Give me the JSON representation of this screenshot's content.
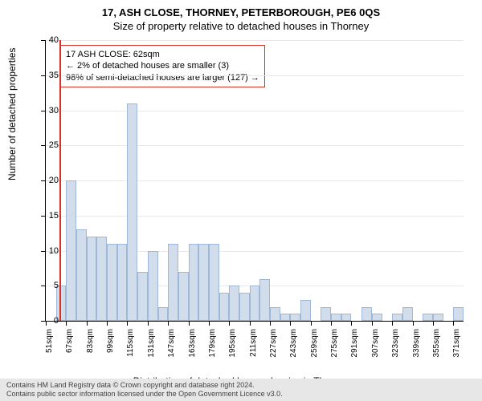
{
  "title": "17, ASH CLOSE, THORNEY, PETERBOROUGH, PE6 0QS",
  "subtitle": "Size of property relative to detached houses in Thorney",
  "ylabel": "Number of detached properties",
  "xlabel": "Distribution of detached houses by size in Thorney",
  "chart": {
    "type": "histogram",
    "background_color": "#ffffff",
    "grid_color": "#e8e8e8",
    "bar_fill": "#d2ddec",
    "bar_border": "#9fb8d9",
    "marker_color": "#d93025",
    "ylim": [
      0,
      40
    ],
    "ytick_step": 5,
    "xlim_labels_start": 51,
    "xlim_labels_step": 16,
    "xlim_bins": 41,
    "x_suffix": "sqm",
    "marker_x_value": 62,
    "bars": [
      {
        "bin": 1,
        "value": 5
      },
      {
        "bin": 2,
        "value": 20
      },
      {
        "bin": 3,
        "value": 13
      },
      {
        "bin": 4,
        "value": 12
      },
      {
        "bin": 5,
        "value": 12
      },
      {
        "bin": 6,
        "value": 11
      },
      {
        "bin": 7,
        "value": 11
      },
      {
        "bin": 8,
        "value": 31
      },
      {
        "bin": 9,
        "value": 7
      },
      {
        "bin": 10,
        "value": 10
      },
      {
        "bin": 11,
        "value": 2
      },
      {
        "bin": 12,
        "value": 11
      },
      {
        "bin": 13,
        "value": 7
      },
      {
        "bin": 14,
        "value": 11
      },
      {
        "bin": 15,
        "value": 11
      },
      {
        "bin": 16,
        "value": 11
      },
      {
        "bin": 17,
        "value": 4
      },
      {
        "bin": 18,
        "value": 5
      },
      {
        "bin": 19,
        "value": 4
      },
      {
        "bin": 20,
        "value": 5
      },
      {
        "bin": 21,
        "value": 6
      },
      {
        "bin": 22,
        "value": 2
      },
      {
        "bin": 23,
        "value": 1
      },
      {
        "bin": 24,
        "value": 1
      },
      {
        "bin": 25,
        "value": 3
      },
      {
        "bin": 26,
        "value": 0
      },
      {
        "bin": 27,
        "value": 2
      },
      {
        "bin": 28,
        "value": 1
      },
      {
        "bin": 29,
        "value": 1
      },
      {
        "bin": 30,
        "value": 0
      },
      {
        "bin": 31,
        "value": 2
      },
      {
        "bin": 32,
        "value": 1
      },
      {
        "bin": 33,
        "value": 0
      },
      {
        "bin": 34,
        "value": 1
      },
      {
        "bin": 35,
        "value": 2
      },
      {
        "bin": 36,
        "value": 0
      },
      {
        "bin": 37,
        "value": 1
      },
      {
        "bin": 38,
        "value": 1
      },
      {
        "bin": 39,
        "value": 0
      },
      {
        "bin": 40,
        "value": 2
      }
    ]
  },
  "annotation": {
    "line1": "17 ASH CLOSE: 62sqm",
    "line2": "← 2% of detached houses are smaller (3)",
    "line3": "98% of semi-detached houses are larger (127) →"
  },
  "footer": {
    "line1": "Contains HM Land Registry data © Crown copyright and database right 2024.",
    "line2": "Contains public sector information licensed under the Open Government Licence v3.0."
  }
}
